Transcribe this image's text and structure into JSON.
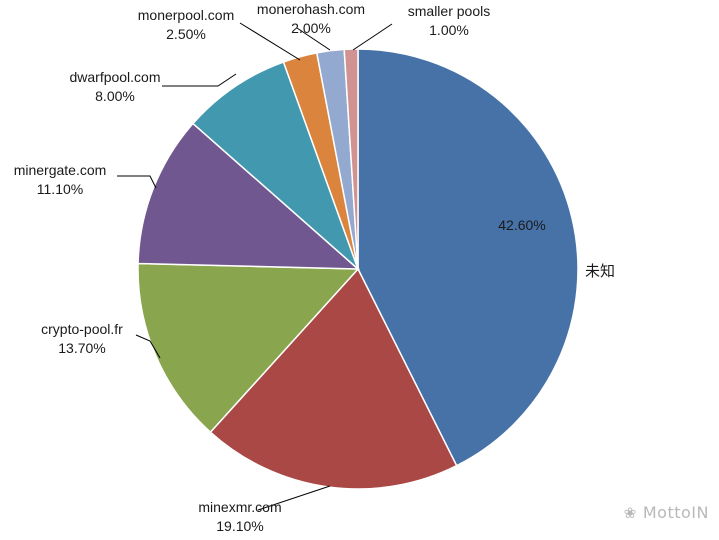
{
  "chart_data": {
    "type": "pie",
    "title": "",
    "slices": [
      {
        "label": "未知",
        "value": 42.6,
        "percent_text": "42.60%",
        "color": "#4672a8"
      },
      {
        "label": "minexmr.com",
        "value": 19.1,
        "percent_text": "19.10%",
        "color": "#a94845"
      },
      {
        "label": "crypto-pool.fr",
        "value": 13.7,
        "percent_text": "13.70%",
        "color": "#89a54e"
      },
      {
        "label": "minergate.com",
        "value": 11.1,
        "percent_text": "11.10%",
        "color": "#71578f"
      },
      {
        "label": "dwarfpool.com",
        "value": 8.0,
        "percent_text": "8.00%",
        "color": "#4298af"
      },
      {
        "label": "monerpool.com",
        "value": 2.5,
        "percent_text": "2.50%",
        "color": "#db843d"
      },
      {
        "label": "monerohash.com",
        "value": 2.0,
        "percent_text": "2.00%",
        "color": "#93a9cf"
      },
      {
        "label": "smaller pools",
        "value": 1.0,
        "percent_text": "1.00%",
        "color": "#d19392"
      }
    ],
    "start_angle_deg": 0,
    "direction": "clockwise",
    "legend": "none"
  },
  "watermark": {
    "text": "MottoIN",
    "icon": "wechat-icon"
  }
}
